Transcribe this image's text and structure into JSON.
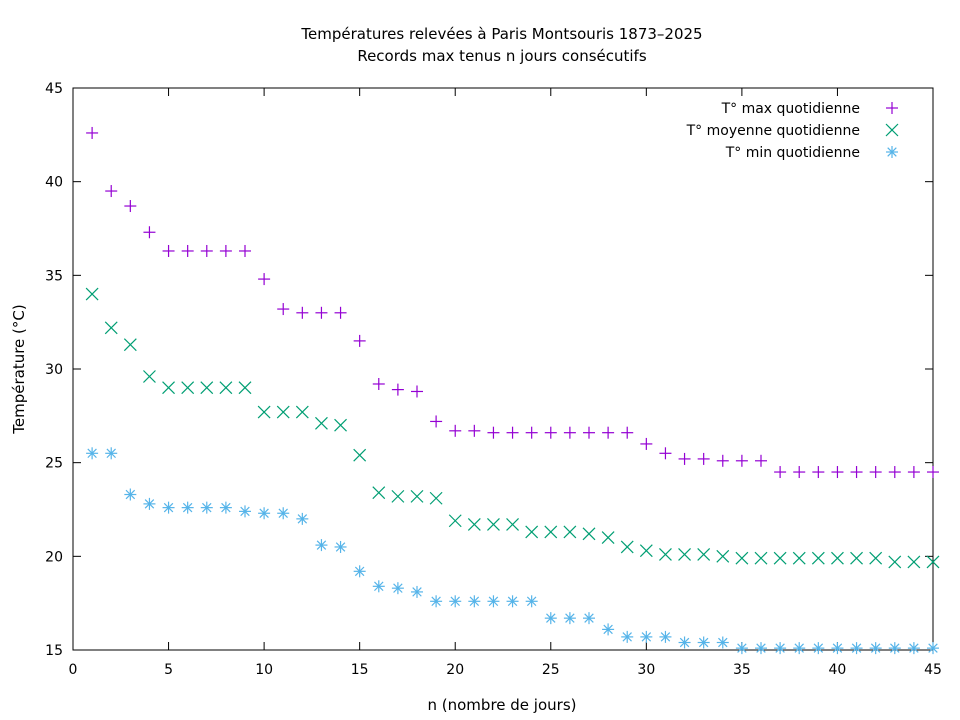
{
  "chart_data": {
    "type": "scatter",
    "title": "Températures relevées à Paris Montsouris 1873–2025",
    "subtitle": "Records max tenus n jours consécutifs",
    "xlabel": "n (nombre de jours)",
    "ylabel": "Température (°C)",
    "xlim": [
      0,
      45
    ],
    "ylim": [
      15,
      45
    ],
    "xticks": [
      "0",
      "5",
      "10",
      "15",
      "20",
      "25",
      "30",
      "35",
      "40",
      "45"
    ],
    "yticks": [
      "15",
      "20",
      "25",
      "30",
      "35",
      "40",
      "45"
    ],
    "grid": false,
    "legend_position": "top-right",
    "x": [
      1,
      2,
      3,
      4,
      5,
      6,
      7,
      8,
      9,
      10,
      11,
      12,
      13,
      14,
      15,
      16,
      17,
      18,
      19,
      20,
      21,
      22,
      23,
      24,
      25,
      26,
      27,
      28,
      29,
      30,
      31,
      32,
      33,
      34,
      35,
      36,
      37,
      38,
      39,
      40,
      41,
      42,
      43,
      44,
      45
    ],
    "series": [
      {
        "name": "T° max quotidienne",
        "marker": "plus",
        "color": "#9400D3",
        "values": [
          42.6,
          39.5,
          38.7,
          37.3,
          36.3,
          36.3,
          36.3,
          36.3,
          36.3,
          34.8,
          33.2,
          33.0,
          33.0,
          33.0,
          31.5,
          29.2,
          28.9,
          28.8,
          27.2,
          26.7,
          26.7,
          26.6,
          26.6,
          26.6,
          26.6,
          26.6,
          26.6,
          26.6,
          26.6,
          26.0,
          25.5,
          25.2,
          25.2,
          25.1,
          25.1,
          25.1,
          24.5,
          24.5,
          24.5,
          24.5,
          24.5,
          24.5,
          24.5,
          24.5,
          24.5
        ]
      },
      {
        "name": "T° moyenne quotidienne",
        "marker": "x",
        "color": "#009E73",
        "values": [
          34.0,
          32.2,
          31.3,
          29.6,
          29.0,
          29.0,
          29.0,
          29.0,
          29.0,
          27.7,
          27.7,
          27.7,
          27.1,
          27.0,
          25.4,
          23.4,
          23.2,
          23.2,
          23.1,
          21.9,
          21.7,
          21.7,
          21.7,
          21.3,
          21.3,
          21.3,
          21.2,
          21.0,
          20.5,
          20.3,
          20.1,
          20.1,
          20.1,
          20.0,
          19.9,
          19.9,
          19.9,
          19.9,
          19.9,
          19.9,
          19.9,
          19.9,
          19.7,
          19.7,
          19.7
        ]
      },
      {
        "name": "T° min quotidienne",
        "marker": "star",
        "color": "#56B4E9",
        "values": [
          25.5,
          25.5,
          23.3,
          22.8,
          22.6,
          22.6,
          22.6,
          22.6,
          22.4,
          22.3,
          22.3,
          22.0,
          20.6,
          20.5,
          19.2,
          18.4,
          18.3,
          18.1,
          17.6,
          17.6,
          17.6,
          17.6,
          17.6,
          17.6,
          16.7,
          16.7,
          16.7,
          16.1,
          15.7,
          15.7,
          15.7,
          15.4,
          15.4,
          15.4,
          15.1,
          15.1,
          15.1,
          15.1,
          15.1,
          15.1,
          15.1,
          15.1,
          15.1,
          15.1,
          15.1
        ]
      }
    ]
  }
}
